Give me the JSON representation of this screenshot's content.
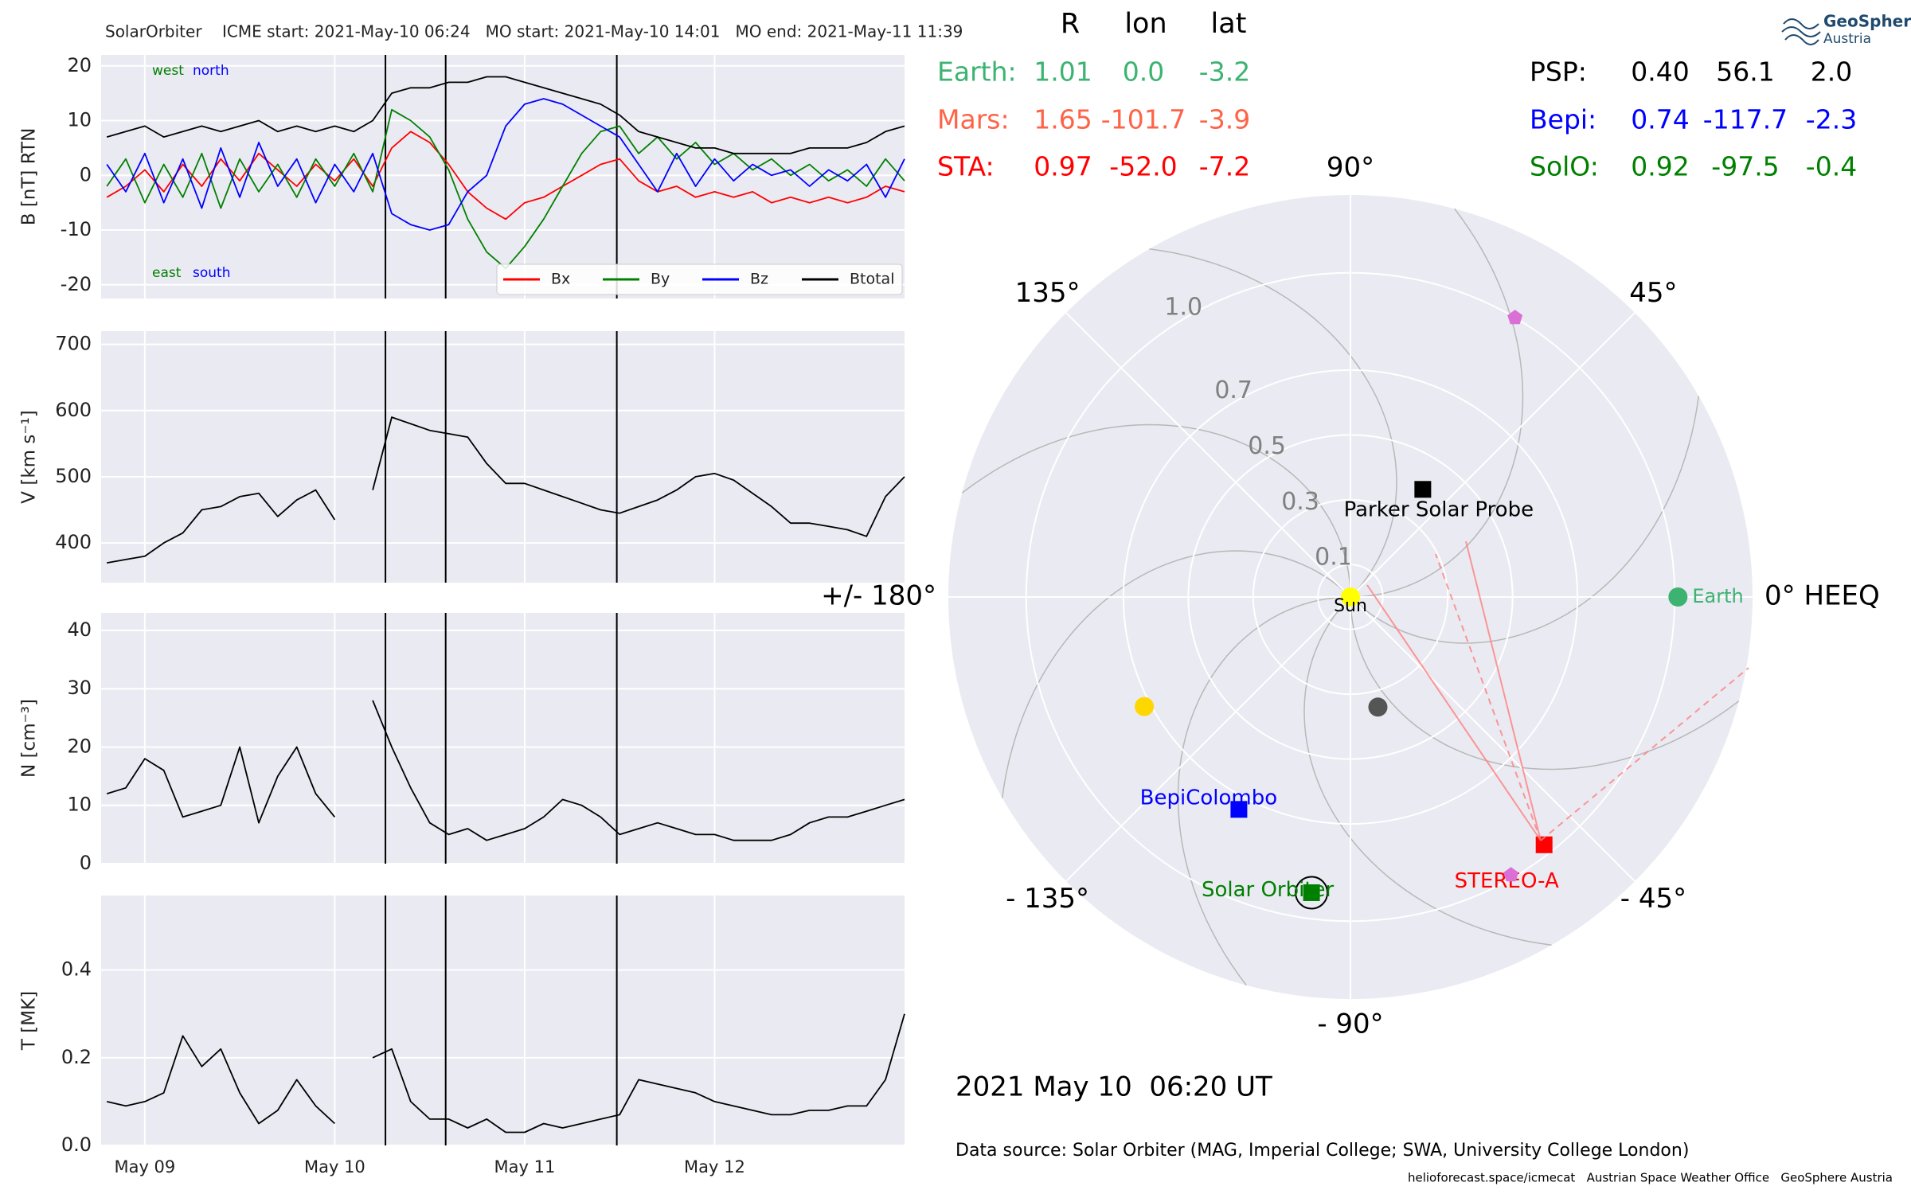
{
  "chart_data": [
    {
      "type": "line",
      "title": "SolarOrbiter    ICME start: 2021-May-10 06:24   MO start: 2021-May-10 14:01   MO end: 2021-May-11 11:39",
      "ylabel": "B [nT] RTN",
      "x": [
        8.8,
        8.9,
        9.0,
        9.1,
        9.2,
        9.3,
        9.4,
        9.5,
        9.6,
        9.7,
        9.8,
        9.9,
        10.0,
        10.1,
        10.2,
        10.3,
        10.4,
        10.5,
        10.6,
        10.7,
        10.8,
        10.9,
        11.0,
        11.1,
        11.2,
        11.3,
        11.4,
        11.5,
        11.6,
        11.7,
        11.8,
        11.9,
        12.0,
        12.1,
        12.2,
        12.3,
        12.4,
        12.5,
        12.6,
        12.7,
        12.8,
        12.9,
        13.0
      ],
      "series": [
        {
          "name": "Bx",
          "color": "#ff0000",
          "values": [
            -4,
            -2,
            1,
            -3,
            2,
            -2,
            3,
            -1,
            4,
            1,
            -2,
            2,
            -1,
            3,
            -2,
            5,
            8,
            6,
            2,
            -3,
            -6,
            -8,
            -5,
            -4,
            -2,
            0,
            2,
            3,
            -1,
            -3,
            -2,
            -4,
            -3,
            -4,
            -3,
            -5,
            -4,
            -5,
            -4,
            -5,
            -4,
            -2,
            -3
          ]
        },
        {
          "name": "By",
          "color": "#008000",
          "values": [
            -2,
            3,
            -5,
            2,
            -4,
            4,
            -6,
            3,
            -3,
            2,
            -4,
            3,
            -2,
            4,
            -3,
            12,
            10,
            7,
            1,
            -8,
            -14,
            -17,
            -13,
            -8,
            -2,
            4,
            8,
            9,
            4,
            7,
            3,
            6,
            2,
            4,
            1,
            3,
            0,
            2,
            -1,
            1,
            -2,
            3,
            -1
          ]
        },
        {
          "name": "Bz",
          "color": "#0000ff",
          "values": [
            2,
            -3,
            4,
            -5,
            3,
            -6,
            5,
            -4,
            6,
            -2,
            3,
            -5,
            2,
            -3,
            4,
            -7,
            -9,
            -10,
            -9,
            -3,
            0,
            9,
            13,
            14,
            13,
            11,
            9,
            7,
            2,
            -3,
            4,
            -2,
            3,
            -1,
            2,
            0,
            1,
            -2,
            1,
            -1,
            2,
            -4,
            3
          ]
        },
        {
          "name": "Btotal",
          "color": "#000000",
          "values": [
            7,
            8,
            9,
            7,
            8,
            9,
            8,
            9,
            10,
            8,
            9,
            8,
            9,
            8,
            10,
            15,
            16,
            16,
            17,
            17,
            18,
            18,
            17,
            16,
            15,
            14,
            13,
            11,
            8,
            7,
            6,
            5,
            5,
            4,
            4,
            4,
            4,
            5,
            5,
            5,
            6,
            8,
            9
          ]
        }
      ],
      "annotations": [
        {
          "text": "west",
          "color": "#008000"
        },
        {
          "text": "north",
          "color": "#0000ff"
        },
        {
          "text": "east",
          "color": "#008000"
        },
        {
          "text": "south",
          "color": "#0000ff"
        }
      ],
      "legend": "lower right",
      "xlim": [
        8.77,
        13.0
      ],
      "xticks": [
        9,
        10,
        11,
        12
      ],
      "ylim": [
        -22.5,
        22
      ],
      "yticks": [
        -20,
        -10,
        0,
        10,
        20
      ],
      "vlines": [
        10.267,
        10.584,
        11.485
      ],
      "grid": true
    },
    {
      "type": "line",
      "ylabel": "V [km s⁻¹]",
      "color": "#000000",
      "x": [
        8.8,
        8.9,
        9.0,
        9.1,
        9.2,
        9.3,
        9.4,
        9.5,
        9.6,
        9.7,
        9.8,
        9.9,
        10.0,
        10.1,
        10.2,
        10.3,
        10.4,
        10.5,
        10.6,
        10.7,
        10.8,
        10.9,
        11.0,
        11.1,
        11.2,
        11.3,
        11.4,
        11.5,
        11.6,
        11.7,
        11.8,
        11.9,
        12.0,
        12.1,
        12.2,
        12.3,
        12.4,
        12.5,
        12.6,
        12.7,
        12.8,
        12.9,
        13.0
      ],
      "values": [
        370,
        375,
        380,
        400,
        415,
        450,
        455,
        470,
        475,
        440,
        465,
        480,
        435,
        null,
        480,
        590,
        580,
        570,
        565,
        560,
        520,
        490,
        490,
        480,
        470,
        460,
        450,
        445,
        455,
        465,
        480,
        500,
        505,
        495,
        475,
        455,
        430,
        430,
        425,
        420,
        410,
        470,
        500
      ],
      "xlim": [
        8.77,
        13.0
      ],
      "xticks": [
        9,
        10,
        11,
        12
      ],
      "ylim": [
        340,
        720
      ],
      "yticks": [
        400,
        500,
        600,
        700
      ],
      "vlines": [
        10.267,
        10.584,
        11.485
      ],
      "grid": true
    },
    {
      "type": "line",
      "ylabel": "N [cm⁻³]",
      "color": "#000000",
      "x": [
        8.8,
        8.9,
        9.0,
        9.1,
        9.2,
        9.3,
        9.4,
        9.5,
        9.6,
        9.7,
        9.8,
        9.9,
        10.0,
        10.1,
        10.2,
        10.3,
        10.4,
        10.5,
        10.6,
        10.7,
        10.8,
        10.9,
        11.0,
        11.1,
        11.2,
        11.3,
        11.4,
        11.5,
        11.6,
        11.7,
        11.8,
        11.9,
        12.0,
        12.1,
        12.2,
        12.3,
        12.4,
        12.5,
        12.6,
        12.7,
        12.8,
        12.9,
        13.0
      ],
      "values": [
        12,
        13,
        18,
        16,
        8,
        9,
        10,
        20,
        7,
        15,
        20,
        12,
        8,
        null,
        28,
        20,
        13,
        7,
        5,
        6,
        4,
        5,
        6,
        8,
        11,
        10,
        8,
        5,
        6,
        7,
        6,
        5,
        5,
        4,
        4,
        4,
        5,
        7,
        8,
        8,
        9,
        10,
        11
      ],
      "xlim": [
        8.77,
        13.0
      ],
      "xticks": [
        9,
        10,
        11,
        12
      ],
      "ylim": [
        0,
        43
      ],
      "yticks": [
        0,
        10,
        20,
        30,
        40
      ],
      "vlines": [
        10.267,
        10.584,
        11.485
      ],
      "grid": true
    },
    {
      "type": "line",
      "ylabel": "T [MK]",
      "color": "#000000",
      "x": [
        8.8,
        8.9,
        9.0,
        9.1,
        9.2,
        9.3,
        9.4,
        9.5,
        9.6,
        9.7,
        9.8,
        9.9,
        10.0,
        10.1,
        10.2,
        10.3,
        10.4,
        10.5,
        10.6,
        10.7,
        10.8,
        10.9,
        11.0,
        11.1,
        11.2,
        11.3,
        11.4,
        11.5,
        11.6,
        11.7,
        11.8,
        11.9,
        12.0,
        12.1,
        12.2,
        12.3,
        12.4,
        12.5,
        12.6,
        12.7,
        12.8,
        12.9,
        13.0
      ],
      "values": [
        0.1,
        0.09,
        0.1,
        0.12,
        0.25,
        0.18,
        0.22,
        0.12,
        0.05,
        0.08,
        0.15,
        0.09,
        0.05,
        null,
        0.2,
        0.22,
        0.1,
        0.06,
        0.06,
        0.04,
        0.06,
        0.03,
        0.03,
        0.05,
        0.04,
        0.05,
        0.06,
        0.07,
        0.15,
        0.14,
        0.13,
        0.12,
        0.1,
        0.09,
        0.08,
        0.07,
        0.07,
        0.08,
        0.08,
        0.09,
        0.09,
        0.15,
        0.3
      ],
      "xlim": [
        8.77,
        13.0
      ],
      "xticks": [
        {
          "value": 9,
          "label": "May 09"
        },
        {
          "value": 10,
          "label": "May 10"
        },
        {
          "value": 11,
          "label": "May 11"
        },
        {
          "value": 12,
          "label": "May 12"
        }
      ],
      "ylim": [
        0,
        0.57
      ],
      "yticks": [
        {
          "value": 0,
          "label": "0.0"
        },
        0.2,
        0.4
      ],
      "vlines": [
        10.267,
        10.584,
        11.485
      ],
      "grid": true
    },
    {
      "type": "polar",
      "rlim": [
        0,
        1.24
      ],
      "rticks": [
        0.1,
        0.3,
        0.5,
        0.7,
        {
          "value": 1,
          "label": "1.0"
        }
      ],
      "thetaticks": [
        {
          "value": 0,
          "label": "0° HEEQ"
        },
        {
          "value": 45,
          "label": "45°"
        },
        {
          "value": 90,
          "label": "90°"
        },
        {
          "value": 135,
          "label": "135°"
        },
        {
          "value": 180,
          "label": "+/- 180°"
        },
        {
          "value": -135,
          "label": "- 135°"
        },
        {
          "value": -90,
          "label": "- 90°"
        },
        {
          "value": -45,
          "label": "- 45°"
        }
      ],
      "points": [
        {
          "label": "Sun",
          "label_color": "#000000",
          "color": "#ffff00",
          "marker": "circle",
          "r": 0,
          "lon": 0
        },
        {
          "label": "Earth",
          "color": "#3cb371",
          "marker": "circle",
          "r": 1.01,
          "lon": 0
        },
        {
          "label": "Parker Solar Probe",
          "color": "#000000",
          "marker": "square",
          "r": 0.4,
          "lon": 56.1
        },
        {
          "label": "BepiColombo",
          "color": "#0000ff",
          "marker": "square",
          "r": 0.74,
          "lon": -117.7
        },
        {
          "label": "Solar Orbiter",
          "color": "#008000",
          "marker": "square",
          "r": 0.92,
          "lon": -97.5,
          "ring": true
        },
        {
          "label": "STEREO-A",
          "color": "#ff0000",
          "marker": "square",
          "r": 0.97,
          "lon": -52.0
        },
        {
          "color": "#ffd700",
          "marker": "circle",
          "r": 0.72,
          "lon": -152
        },
        {
          "color": "#555555",
          "marker": "circle",
          "r": 0.35,
          "lon": -76
        },
        {
          "color": "#da70d6",
          "marker": "pentagon",
          "r": 1.0,
          "lon": 59.5
        },
        {
          "color": "#da70d6",
          "marker": "pentagon",
          "r": 0.99,
          "lon": -60
        }
      ]
    }
  ],
  "table": {
    "columns": [
      "R",
      "lon",
      "lat"
    ],
    "left": [
      {
        "name": "Earth:",
        "color": "#3cb371",
        "cells": [
          "1.01",
          "0.0",
          "-3.2"
        ]
      },
      {
        "name": "Mars:",
        "color": "#ff6347",
        "cells": [
          "1.65",
          "-101.7",
          "-3.9"
        ]
      },
      {
        "name": "STA:",
        "color": "#ff0000",
        "cells": [
          "0.97",
          "-52.0",
          "-7.2"
        ]
      }
    ],
    "right": [
      {
        "name": "PSP:",
        "color": "#000000",
        "cells": [
          "0.40",
          "56.1",
          "2.0"
        ]
      },
      {
        "name": "Bepi:",
        "color": "#0000ff",
        "cells": [
          "0.74",
          "-117.7",
          "-2.3"
        ]
      },
      {
        "name": "SolO:",
        "color": "#008000",
        "cells": [
          "0.92",
          "-97.5",
          "-0.4"
        ]
      }
    ]
  },
  "timestamp": "2021 May 10  06:20 UT",
  "source": "Data source: Solar Orbiter (MAG, Imperial College; SWA, University College London)",
  "footer": "helioforecast.space/icmecat   Austrian Space Weather Office   GeoSphere Austria",
  "logo": [
    "GeoSphere",
    "Austria"
  ]
}
